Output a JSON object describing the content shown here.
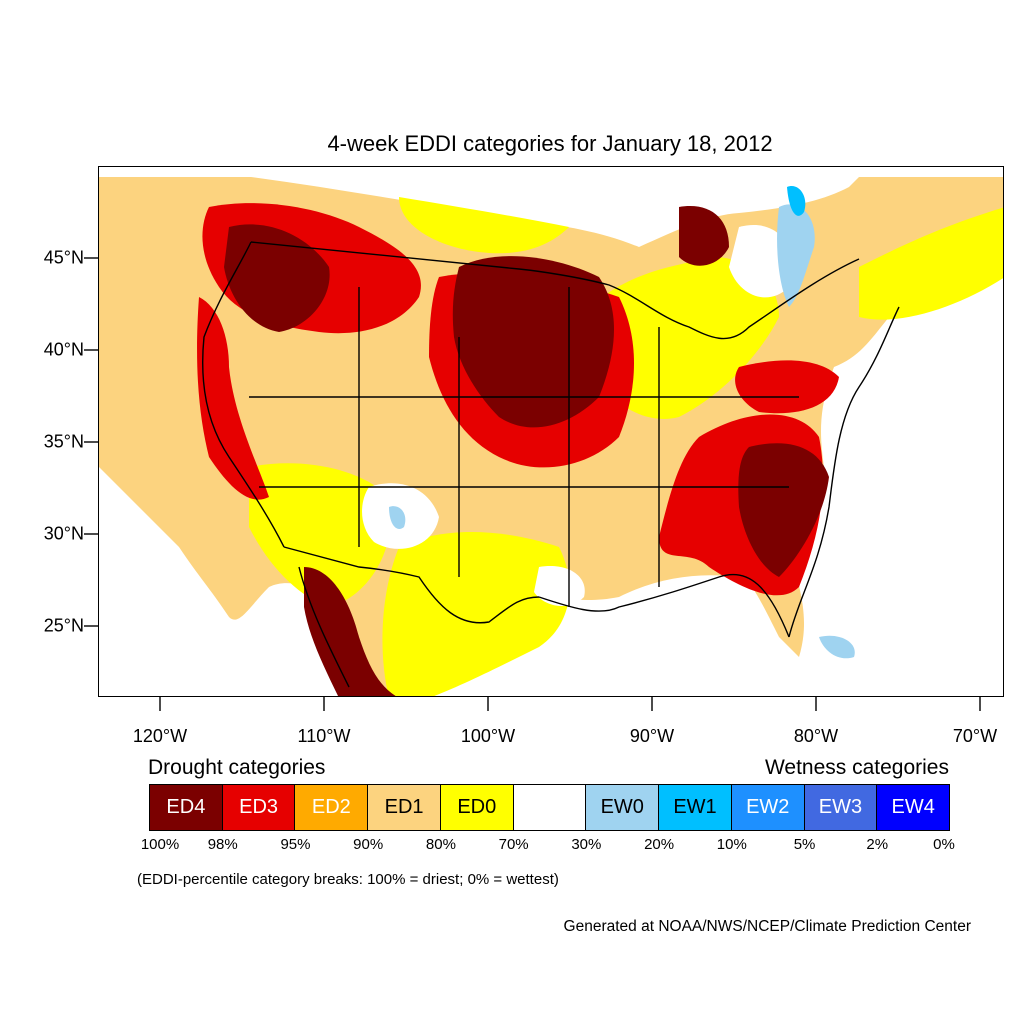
{
  "title": "4-week EDDI categories for January 18, 2012",
  "latitude_labels": [
    "45°N",
    "40°N",
    "35°N",
    "30°N",
    "25°N"
  ],
  "longitude_labels": [
    "120°W",
    "110°W",
    "100°W",
    "90°W",
    "80°W",
    "70°W"
  ],
  "legend": {
    "drought_heading": "Drought categories",
    "wetness_heading": "Wetness categories",
    "categories": [
      {
        "label": "ED4",
        "color": "#7b0000",
        "text_color": "#ffffff"
      },
      {
        "label": "ED3",
        "color": "#e60000",
        "text_color": "#ffffff"
      },
      {
        "label": "ED2",
        "color": "#ffaa00",
        "text_color": "#ffffff"
      },
      {
        "label": "ED1",
        "color": "#fcd37f",
        "text_color": "#000000"
      },
      {
        "label": "ED0",
        "color": "#ffff00",
        "text_color": "#000000"
      },
      {
        "label": "",
        "color": "#ffffff",
        "text_color": "#000000"
      },
      {
        "label": "EW0",
        "color": "#9fd3f0",
        "text_color": "#000000"
      },
      {
        "label": "EW1",
        "color": "#00bfff",
        "text_color": "#000000"
      },
      {
        "label": "EW2",
        "color": "#1e90ff",
        "text_color": "#ffffff"
      },
      {
        "label": "EW3",
        "color": "#4169e1",
        "text_color": "#ffffff"
      },
      {
        "label": "EW4",
        "color": "#0000ff",
        "text_color": "#ffffff"
      }
    ],
    "breaks": [
      "100%",
      "98%",
      "95%",
      "90%",
      "80%",
      "70%",
      "30%",
      "20%",
      "10%",
      "5%",
      "2%",
      "0%"
    ]
  },
  "note": "(EDDI-percentile category breaks: 100% = driest; 0% = wettest)",
  "credit": "Generated at NOAA/NWS/NCEP/Climate Prediction Center"
}
